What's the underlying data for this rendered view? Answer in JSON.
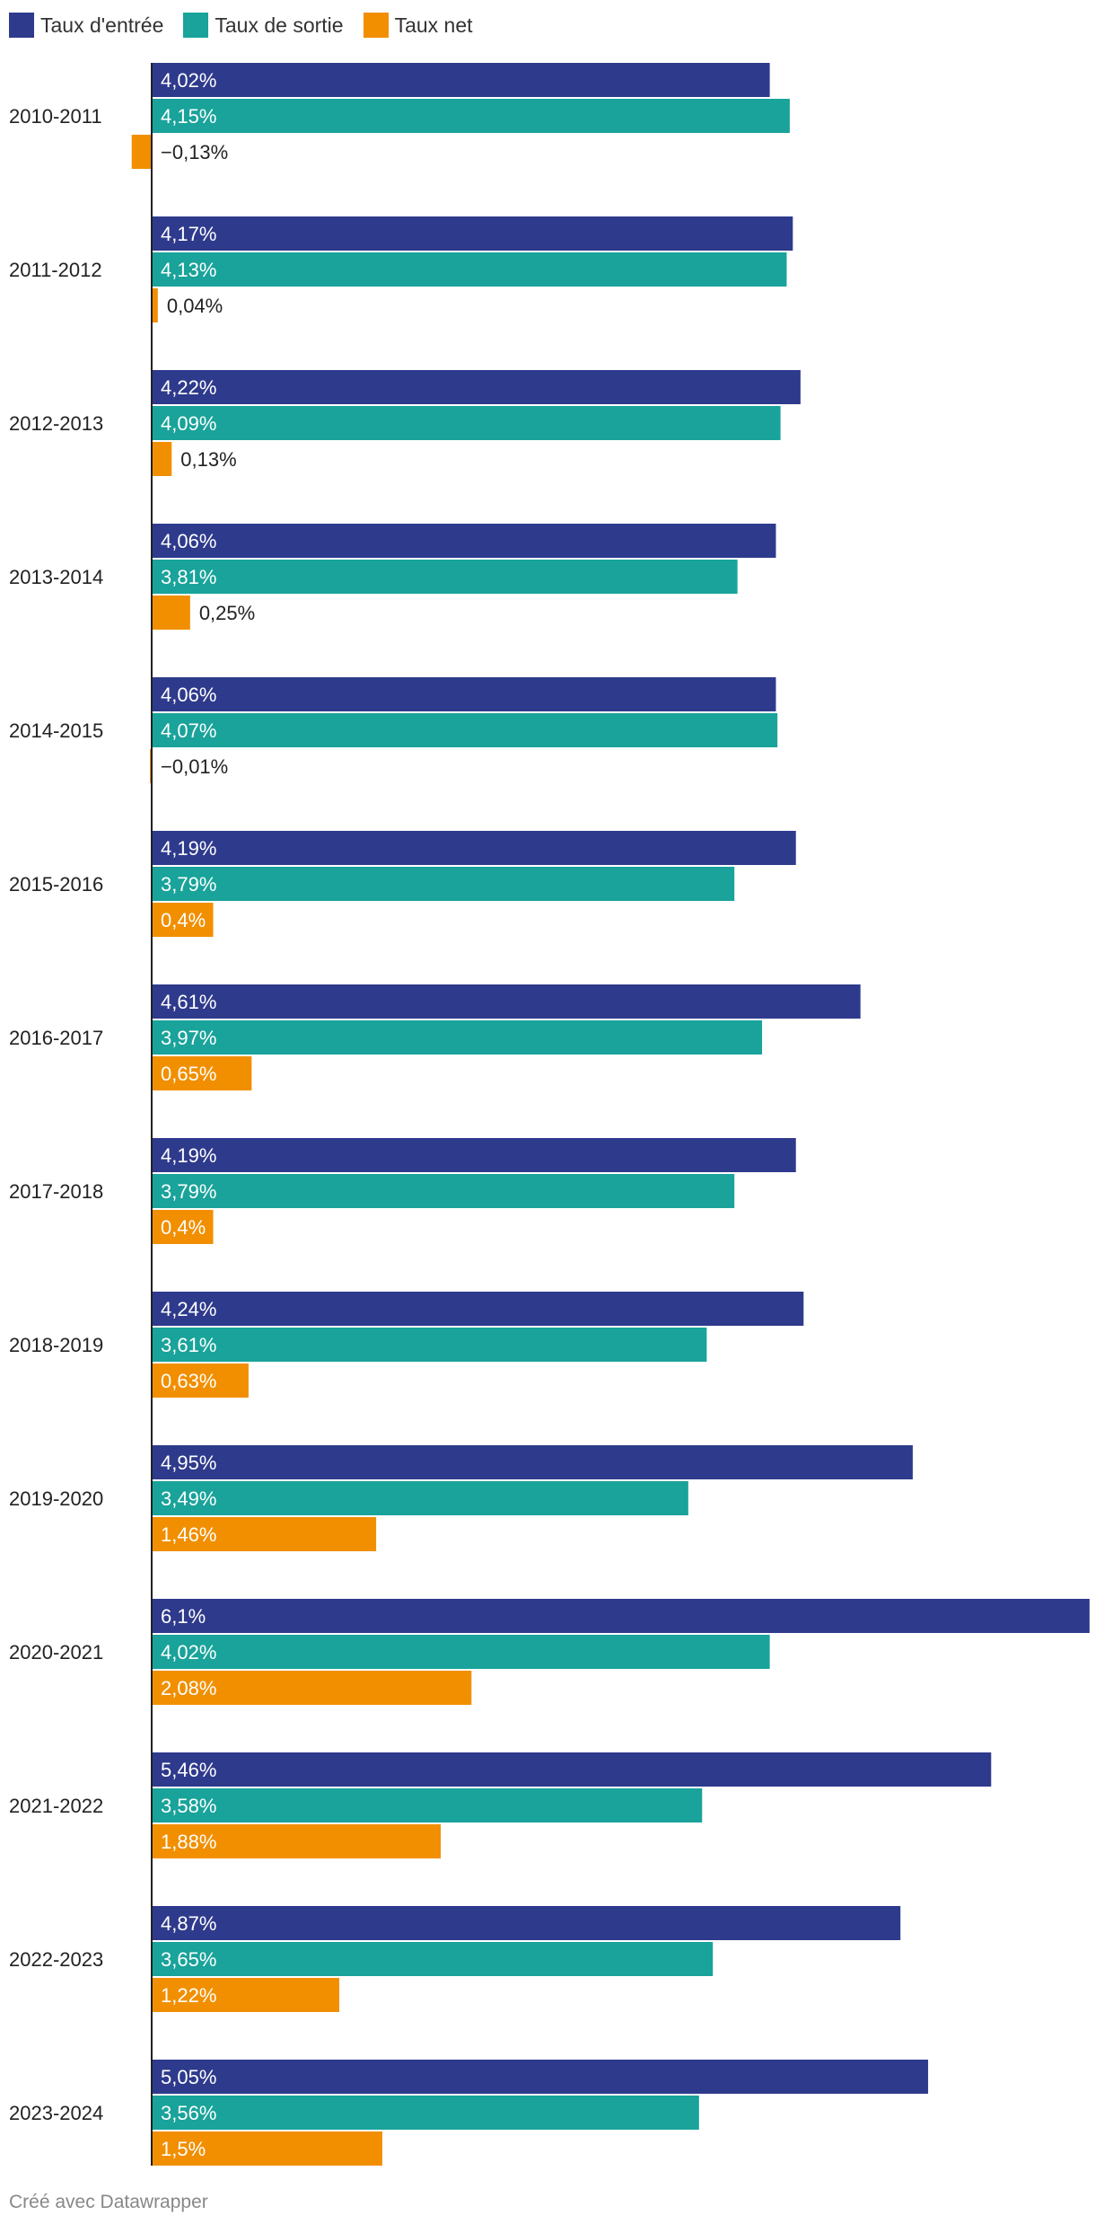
{
  "legend": [
    {
      "label": "Taux d'entrée",
      "color": "#2e3a8c"
    },
    {
      "label": "Taux de sortie",
      "color": "#19a39a"
    },
    {
      "label": "Taux net",
      "color": "#f18f01"
    }
  ],
  "footer": "Créé avec Datawrapper",
  "chart_data": {
    "type": "bar",
    "orientation": "horizontal",
    "title": "",
    "xlabel": "",
    "ylabel": "",
    "xlim": [
      -0.13,
      6.1
    ],
    "grid": false,
    "legend_position": "top-left",
    "categories": [
      "2010-2011",
      "2011-2012",
      "2012-2013",
      "2013-2014",
      "2014-2015",
      "2015-2016",
      "2016-2017",
      "2017-2018",
      "2018-2019",
      "2019-2020",
      "2020-2021",
      "2021-2022",
      "2022-2023",
      "2023-2024"
    ],
    "series": [
      {
        "name": "Taux d'entrée",
        "color": "#2e3a8c",
        "values": [
          4.02,
          4.17,
          4.22,
          4.06,
          4.06,
          4.19,
          4.61,
          4.19,
          4.24,
          4.95,
          6.1,
          5.46,
          4.87,
          5.05
        ],
        "labels": [
          "4,02%",
          "4,17%",
          "4,22%",
          "4,06%",
          "4,06%",
          "4,19%",
          "4,61%",
          "4,19%",
          "4,24%",
          "4,95%",
          "6,1%",
          "5,46%",
          "4,87%",
          "5,05%"
        ]
      },
      {
        "name": "Taux de sortie",
        "color": "#19a39a",
        "values": [
          4.15,
          4.13,
          4.09,
          3.81,
          4.07,
          3.79,
          3.97,
          3.79,
          3.61,
          3.49,
          4.02,
          3.58,
          3.65,
          3.56
        ],
        "labels": [
          "4,15%",
          "4,13%",
          "4,09%",
          "3,81%",
          "4,07%",
          "3,79%",
          "3,97%",
          "3,79%",
          "3,61%",
          "3,49%",
          "4,02%",
          "3,58%",
          "3,65%",
          "3,56%"
        ]
      },
      {
        "name": "Taux net",
        "color": "#f18f01",
        "values": [
          -0.13,
          0.04,
          0.13,
          0.25,
          -0.01,
          0.4,
          0.65,
          0.4,
          0.63,
          1.46,
          2.08,
          1.88,
          1.22,
          1.5
        ],
        "labels": [
          "−0,13%",
          "0,04%",
          "0,13%",
          "0,25%",
          "−0,01%",
          "0,4%",
          "0,65%",
          "0,4%",
          "0,63%",
          "1,46%",
          "2,08%",
          "1,88%",
          "1,22%",
          "1,5%"
        ]
      }
    ]
  }
}
